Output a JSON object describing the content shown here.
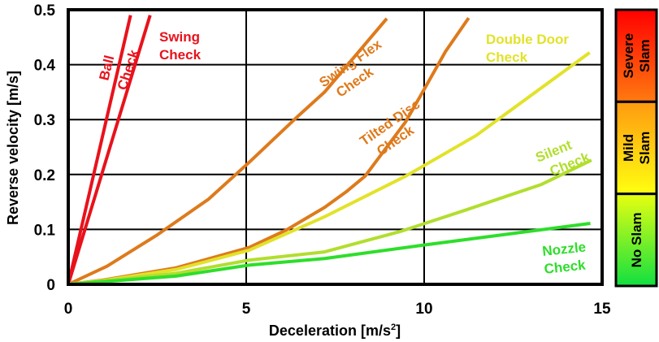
{
  "chart_data": {
    "type": "line",
    "xlabel": "Deceleration [m/s",
    "xlabel_sup": "2",
    "xlabel_end": "]",
    "ylabel": "Reverse velocity [m/s]",
    "xlim": [
      0,
      15
    ],
    "ylim": [
      0,
      0.5
    ],
    "grid": true,
    "x_ticks": [
      "0",
      "5",
      "10",
      "15"
    ],
    "y_ticks": [
      "0",
      "0.1",
      "0.2",
      "0.3",
      "0.4",
      "0.5"
    ],
    "series": [
      {
        "name": "Ball",
        "color": "#e8121c",
        "points": [
          [
            0,
            0
          ],
          [
            1.75,
            0.49
          ]
        ]
      },
      {
        "name": "Swing Check",
        "color": "#e8121c",
        "points": [
          [
            0,
            0
          ],
          [
            2.3,
            0.49
          ]
        ]
      },
      {
        "name": "Swing Flex Check",
        "color": "#de7a1c",
        "points": [
          [
            0,
            0
          ],
          [
            1.09,
            0.033
          ],
          [
            2.5,
            0.09
          ],
          [
            3.94,
            0.155
          ],
          [
            5.08,
            0.222
          ],
          [
            6.45,
            0.306
          ],
          [
            7.2,
            0.35
          ],
          [
            8.95,
            0.484
          ]
        ]
      },
      {
        "name": "Tilted Disc Check",
        "color": "#de7a1c",
        "points": [
          [
            0,
            0
          ],
          [
            1.0,
            0.008
          ],
          [
            3.03,
            0.03
          ],
          [
            5.08,
            0.067
          ],
          [
            6.13,
            0.099
          ],
          [
            7.2,
            0.14
          ],
          [
            7.8,
            0.168
          ],
          [
            8.34,
            0.197
          ],
          [
            9.48,
            0.296
          ],
          [
            10.0,
            0.355
          ],
          [
            10.6,
            0.424
          ],
          [
            11.25,
            0.485
          ]
        ]
      },
      {
        "name": "Double Door Check",
        "color": "#e2e22a",
        "points": [
          [
            0,
            0
          ],
          [
            1.0,
            0.007
          ],
          [
            3.03,
            0.027
          ],
          [
            5.08,
            0.062
          ],
          [
            7.2,
            0.123
          ],
          [
            9.48,
            0.197
          ],
          [
            11.46,
            0.271
          ],
          [
            14.65,
            0.422
          ]
        ]
      },
      {
        "name": "Silent Check",
        "color": "#b2de2e",
        "points": [
          [
            0,
            0
          ],
          [
            3.03,
            0.02
          ],
          [
            5.08,
            0.044
          ],
          [
            7.2,
            0.059
          ],
          [
            9.32,
            0.096
          ],
          [
            11.2,
            0.136
          ],
          [
            13.3,
            0.182
          ],
          [
            14.7,
            0.226
          ]
        ]
      },
      {
        "name": "Nozzle Check",
        "color": "#2ede2a",
        "points": [
          [
            0,
            0
          ],
          [
            3.03,
            0.015
          ],
          [
            5.08,
            0.035
          ],
          [
            7.2,
            0.047
          ],
          [
            9.93,
            0.071
          ],
          [
            14.67,
            0.111
          ]
        ]
      }
    ],
    "annotations": [
      {
        "lines": [
          "Ball"
        ],
        "color": "#e8121c"
      },
      {
        "lines": [
          "Check"
        ],
        "color": "#e8121c"
      },
      {
        "lines": [
          "Swing",
          "Check"
        ],
        "color": "#e8121c"
      },
      {
        "lines": [
          "Swing Flex",
          "Check"
        ],
        "color": "#de7a1c"
      },
      {
        "lines": [
          "Tilted Disc",
          "Check"
        ],
        "color": "#de7a1c"
      },
      {
        "lines": [
          "Double Door",
          "Check"
        ],
        "color": "#e2e22a"
      },
      {
        "lines": [
          "Silent",
          "Check"
        ],
        "color": "#b2de2e"
      },
      {
        "lines": [
          "Nozzle",
          "Check"
        ],
        "color": "#2ede2a"
      }
    ],
    "legend": {
      "placement": "right",
      "bands": [
        {
          "lines": [
            "Severe",
            "Slam"
          ],
          "colors": [
            "#ff0000",
            "#ff7a10"
          ]
        },
        {
          "lines": [
            "Mild",
            "Slam"
          ],
          "colors": [
            "#ff9a10",
            "#ffff10"
          ]
        },
        {
          "lines": [
            "No Slam"
          ],
          "colors": [
            "#e8ff10",
            "#10e040"
          ]
        }
      ]
    }
  }
}
